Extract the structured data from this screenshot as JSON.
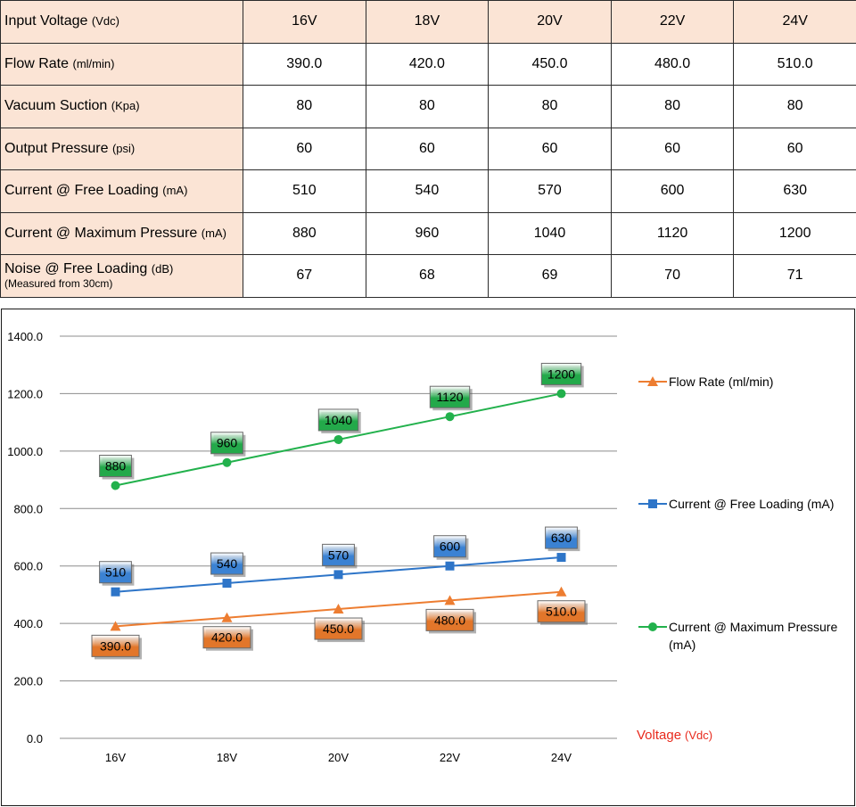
{
  "table": {
    "header": {
      "label": "Input Voltage",
      "unit": "(Vdc)",
      "columns": [
        "16V",
        "18V",
        "20V",
        "22V",
        "24V"
      ]
    },
    "rows": [
      {
        "label": "Flow Rate",
        "unit": "(ml/min)",
        "note": "",
        "values": [
          "390.0",
          "420.0",
          "450.0",
          "480.0",
          "510.0"
        ]
      },
      {
        "label": "Vacuum Suction",
        "unit": "(Kpa)",
        "note": "",
        "values": [
          "80",
          "80",
          "80",
          "80",
          "80"
        ]
      },
      {
        "label": "Output Pressure",
        "unit": "(psi)",
        "note": "",
        "values": [
          "60",
          "60",
          "60",
          "60",
          "60"
        ]
      },
      {
        "label": "Current @ Free Loading",
        "unit": "(mA)",
        "note": "",
        "values": [
          "510",
          "540",
          "570",
          "600",
          "630"
        ]
      },
      {
        "label": "Current @ Maximum Pressure",
        "unit": "(mA)",
        "note": "",
        "values": [
          "880",
          "960",
          "1040",
          "1120",
          "1200"
        ]
      },
      {
        "label": "Noise @ Free Loading",
        "unit": "(dB)",
        "note": "(Measured from 30cm)",
        "values": [
          "67",
          "68",
          "69",
          "70",
          "71"
        ]
      }
    ]
  },
  "chart_data": {
    "type": "line",
    "title": "",
    "xlabel": "Voltage",
    "xlabel_unit": "(Vdc)",
    "ylabel": "",
    "categories": [
      "16V",
      "18V",
      "20V",
      "22V",
      "24V"
    ],
    "ylim": [
      0,
      1400
    ],
    "yticks": [
      "0.0",
      "200.0",
      "400.0",
      "600.0",
      "800.0",
      "1000.0",
      "1200.0",
      "1400.0"
    ],
    "grid": true,
    "legend_position": "right",
    "series": [
      {
        "name": "Flow Rate (ml/min)",
        "marker": "triangle",
        "color": "#ed7d31",
        "label_fill": "#e2762a",
        "label_position": "below",
        "values": [
          390,
          420,
          450,
          480,
          510
        ],
        "labels": [
          "390.0",
          "420.0",
          "450.0",
          "480.0",
          "510.0"
        ]
      },
      {
        "name": "Current @ Free Loading (mA)",
        "marker": "square",
        "color": "#2e75c8",
        "label_fill": "#3b82d3",
        "label_position": "above",
        "values": [
          510,
          540,
          570,
          600,
          630
        ],
        "labels": [
          "510",
          "540",
          "570",
          "600",
          "630"
        ]
      },
      {
        "name": "Current @ Maximum Pressure (mA)",
        "marker": "circle",
        "color": "#22b14c",
        "label_fill": "#23a94a",
        "label_position": "above",
        "values": [
          880,
          960,
          1040,
          1120,
          1200
        ],
        "labels": [
          "880",
          "960",
          "1040",
          "1120",
          "1200"
        ]
      }
    ],
    "colors": {
      "grid": "#8c8c8c",
      "axis_text": "#000000",
      "xlabel": "#e8291c"
    }
  }
}
